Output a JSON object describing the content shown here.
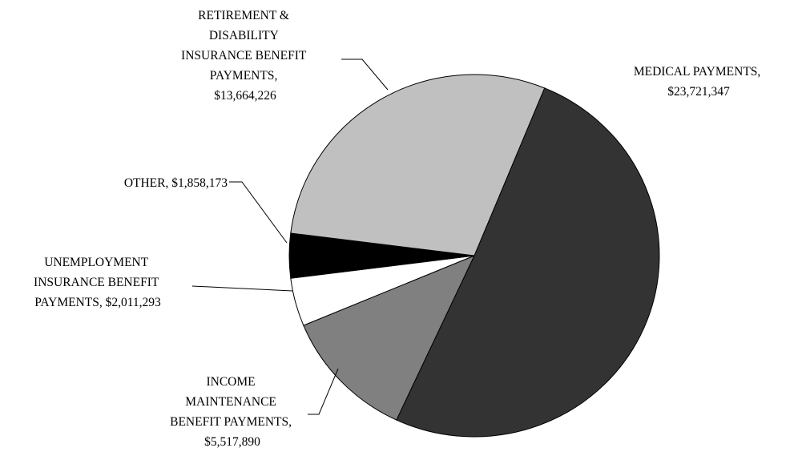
{
  "chart_data": {
    "type": "pie",
    "slices": [
      {
        "label": [
          "MEDICAL PAYMENTS,",
          "$23,721,347"
        ],
        "value": 23721347,
        "color": "#333333"
      },
      {
        "label": [
          "INCOME",
          "MAINTENANCE",
          "BENEFIT PAYMENTS,",
          "$5,517,890"
        ],
        "value": 5517890,
        "color": "#808080"
      },
      {
        "label": [
          "UNEMPLOYMENT",
          "INSURANCE BENEFIT",
          "PAYMENTS,  $2,011,293"
        ],
        "value": 2011293,
        "color": "#ffffff"
      },
      {
        "label": [
          "OTHER,  $1,858,173"
        ],
        "value": 1858173,
        "color": "#000000"
      },
      {
        "label": [
          "RETIREMENT &",
          "DISABILITY",
          "INSURANCE BENEFIT",
          "PAYMENTS,",
          "$13,664,226"
        ],
        "value": 13664226,
        "color": "#c0c0c0"
      }
    ],
    "legend": "none"
  }
}
